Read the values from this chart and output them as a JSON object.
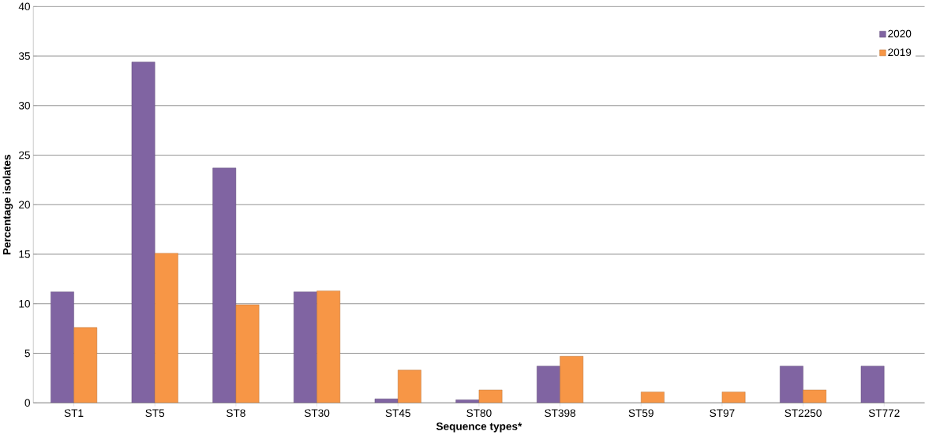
{
  "chart_data": {
    "type": "bar",
    "xlabel": "Sequence types*",
    "ylabel": "Percentage isolates",
    "categories": [
      "ST1",
      "ST5",
      "ST8",
      "ST30",
      "ST45",
      "ST80",
      "ST398",
      "ST59",
      "ST97",
      "ST2250",
      "ST772"
    ],
    "series": [
      {
        "name": "2020",
        "color": "#8064a2",
        "values": [
          11.2,
          34.4,
          23.7,
          11.2,
          0.4,
          0.3,
          3.7,
          null,
          null,
          3.7,
          3.7
        ]
      },
      {
        "name": "2019",
        "color": "#f79646",
        "values": [
          7.6,
          15.1,
          9.9,
          11.3,
          3.3,
          1.3,
          4.7,
          1.1,
          1.1,
          1.3,
          null
        ]
      }
    ],
    "ylim": [
      0,
      40
    ],
    "yticks": [
      0,
      5,
      10,
      15,
      20,
      25,
      30,
      35,
      40
    ],
    "grid": "y",
    "legend": "top right"
  }
}
